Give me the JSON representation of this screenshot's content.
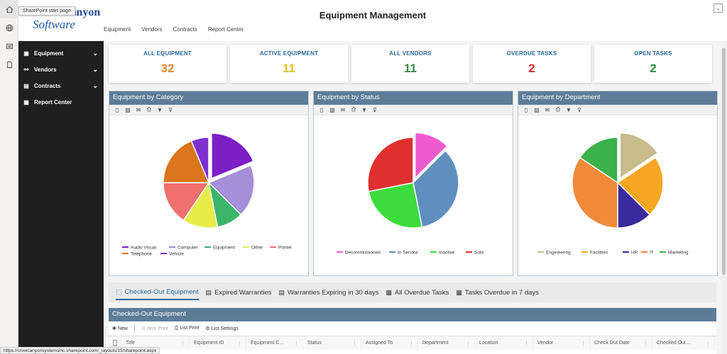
{
  "rail": {
    "tooltip": "SharePoint start page",
    "icons": [
      "home-icon",
      "globe-icon",
      "news-icon",
      "document-icon"
    ]
  },
  "header": {
    "logo_line1": "Crow Canyon",
    "logo_line2": "Software",
    "title": "Equipment Management",
    "nav": [
      "Equipment",
      "Vendors",
      "Contracts",
      "Report Center"
    ],
    "collapse_glyph": "⌄"
  },
  "sidebar": {
    "items": [
      {
        "label": "Equipment",
        "icon": "box-icon",
        "has_children": true
      },
      {
        "label": "Vendors",
        "icon": "handshake-icon",
        "has_children": true
      },
      {
        "label": "Contracts",
        "icon": "contract-icon",
        "has_children": true
      },
      {
        "label": "Report Center",
        "icon": "report-icon",
        "has_children": false
      }
    ]
  },
  "cards": [
    {
      "title": "ALL EQUIPMENT",
      "value": "32",
      "color": "#e08a2c"
    },
    {
      "title": "ACTIVE EQUIPMENT",
      "value": "11",
      "color": "#e0c21f"
    },
    {
      "title": "ALL VENDORS",
      "value": "11",
      "color": "#2e8b3a"
    },
    {
      "title": "OVERDUE TASKS",
      "value": "2",
      "color": "#d12b2b"
    },
    {
      "title": "OPEN TASKS",
      "value": "2",
      "color": "#2e8b3a"
    }
  ],
  "chart_tools": [
    "pdf-icon",
    "image-icon",
    "email-icon",
    "print-icon",
    "filter-icon",
    "clear-filter-icon"
  ],
  "chart_data": [
    {
      "type": "pie",
      "title": "Equipment by Category",
      "categories": [
        "Audio Visual",
        "Computer",
        "Equipment",
        "Other",
        "Printer",
        "Telephone",
        "Vehicle"
      ],
      "values": [
        6,
        6,
        3,
        4,
        5,
        6,
        2
      ],
      "colors": [
        "#7d1fc4",
        "#a48fd8",
        "#3bb56a",
        "#e8ec4a",
        "#f07070",
        "#d9761e",
        "#7d2fd0"
      ],
      "exploded": [
        0
      ],
      "legend": "bottom"
    },
    {
      "type": "pie",
      "title": "Equipment by Status",
      "categories": [
        "Decommissioned",
        "In Service",
        "Inactive",
        "Sold"
      ],
      "values": [
        4,
        11,
        8,
        9
      ],
      "colors": [
        "#f05ad0",
        "#5f8fbf",
        "#3cdc3c",
        "#e03030"
      ],
      "exploded": [
        0
      ],
      "legend": "bottom"
    },
    {
      "type": "pie",
      "title": "Equipment by Department",
      "categories": [
        "Engineering",
        "Facilities",
        "HR",
        "IT",
        "Marketing"
      ],
      "values": [
        5,
        7,
        4,
        11,
        5
      ],
      "colors": [
        "#c9bc8c",
        "#f5a623",
        "#3a2a9c",
        "#f08a3a",
        "#3cb04a"
      ],
      "exploded": [
        0
      ],
      "legend": "bottom"
    }
  ],
  "tabs": [
    {
      "label": "Checked-Out Equipment",
      "icon": "checkout-icon",
      "active": true
    },
    {
      "label": "Expired Warranties",
      "icon": "doc-icon",
      "active": false
    },
    {
      "label": "Warranties Expiring in 30 days",
      "icon": "doc-icon",
      "active": false
    },
    {
      "label": "All Overdue Tasks",
      "icon": "clipboard-icon",
      "active": false
    },
    {
      "label": "Tasks Overdue in 7 days",
      "icon": "clipboard-icon",
      "active": false
    }
  ],
  "list": {
    "title": "Checked-Out Equipment",
    "toolbar": {
      "new": "New",
      "item_print": "Item Print",
      "list_print": "List Print",
      "list_settings": "List Settings"
    },
    "columns": [
      "Title",
      "Equipment ID",
      "Equipment C...",
      "Status",
      "Assigned To",
      "Department",
      "Location",
      "Vendor",
      "Check Out Date",
      "Checked Out ..."
    ]
  },
  "status_url": "https://crowcanyonsystemsinc.sharepoint.com/_layouts/15/sharepoint.aspx"
}
